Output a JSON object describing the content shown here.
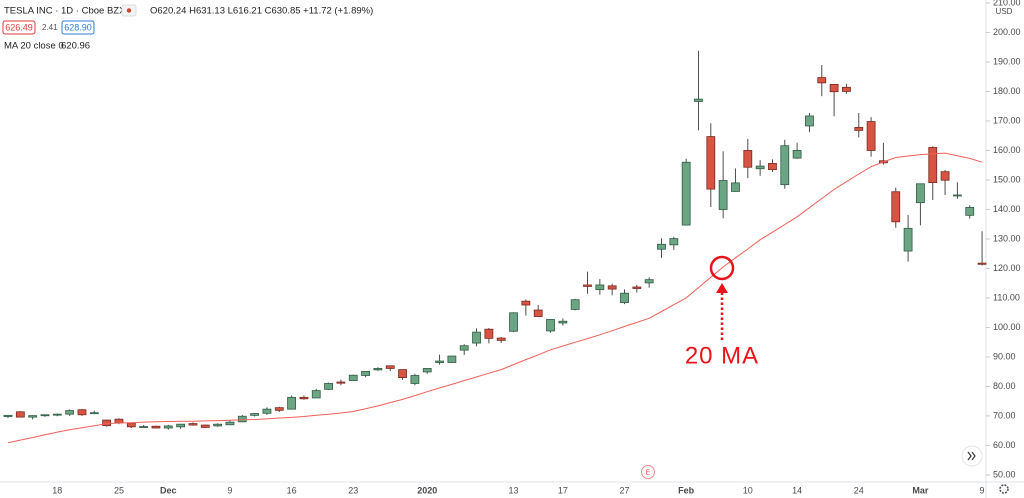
{
  "header": {
    "symbol": "TESLA INC · 1D · Cboe BZX",
    "ohlc": "O620.24 H631.13 L616.21 C630.85 +11.72 (+1.89%)",
    "bid": "626.49",
    "spread": "2.41",
    "ask": "628.90"
  },
  "chart_data": {
    "type": "candlestick",
    "categories": [
      null,
      null,
      null,
      null,
      "18",
      null,
      null,
      null,
      null,
      "25",
      null,
      null,
      null,
      "Dec",
      null,
      null,
      null,
      null,
      "9",
      null,
      null,
      null,
      null,
      "16",
      null,
      null,
      null,
      null,
      "23",
      null,
      null,
      null,
      null,
      null,
      "2020",
      null,
      null,
      null,
      null,
      null,
      null,
      "13",
      null,
      null,
      null,
      "17",
      null,
      null,
      null,
      null,
      "27",
      null,
      null,
      null,
      null,
      "Feb",
      null,
      null,
      null,
      null,
      "10",
      null,
      null,
      null,
      "14",
      null,
      null,
      null,
      null,
      "24",
      null,
      null,
      null,
      null,
      "Mar",
      null,
      null,
      null,
      null,
      "9"
    ],
    "open": [
      69.8,
      71.4,
      69.6,
      70.1,
      70.3,
      70.6,
      72.1,
      71.0,
      68.6,
      68.9,
      67.6,
      66.3,
      66.5,
      65.9,
      66.3,
      67.4,
      66.9,
      66.6,
      67.0,
      68.0,
      70.2,
      70.9,
      72.8,
      72.3,
      76.3,
      76.1,
      79.0,
      81.5,
      82.0,
      83.7,
      85.6,
      87.0,
      85.7,
      81.0,
      84.9,
      88.1,
      88.1,
      92.3,
      94.7,
      99.4,
      96.4,
      98.7,
      108.9,
      105.9,
      98.8,
      101.5,
      106.1,
      114.4,
      112.8,
      114.1,
      108.4,
      113.7,
      115.1,
      126.5,
      128.0,
      134.7,
      176.6,
      164.7,
      139.98,
      146.1,
      160.0,
      153.8,
      155.6,
      148.4,
      157.4,
      168.3,
      184.7,
      182.4,
      181.4,
      167.8,
      169.8,
      156.5,
      146.0,
      125.9,
      142.3,
      161.0,
      152.8,
      144.8,
      138.0,
      121.8
    ],
    "high": [
      70.3,
      71.6,
      70.2,
      70.5,
      70.8,
      72.2,
      72.3,
      71.8,
      68.8,
      69.2,
      67.7,
      66.9,
      66.7,
      67.0,
      67.3,
      67.8,
      67.1,
      67.5,
      68.4,
      70.3,
      71.0,
      72.9,
      73.1,
      76.9,
      76.9,
      79.2,
      81.3,
      82.3,
      84.0,
      85.2,
      86.5,
      87.1,
      85.8,
      84.3,
      86.1,
      90.8,
      90.3,
      94.3,
      99.7,
      99.8,
      96.8,
      105.1,
      109.5,
      107.6,
      102.7,
      103.1,
      109.7,
      118.9,
      116.4,
      114.8,
      112.9,
      114.4,
      117.0,
      130.2,
      130.8,
      157.2,
      193.8,
      169.2,
      159.7,
      153.9,
      163.9,
      156.7,
      157.0,
      163.6,
      162.6,
      172.7,
      188.96,
      182.4,
      182.6,
      172.7,
      171.3,
      162.6,
      147.4,
      138.1,
      148.7,
      161.4,
      153.4,
      149.2,
      141.4,
      132.6
    ],
    "low": [
      69.3,
      69.5,
      68.8,
      69.7,
      69.9,
      70.0,
      70.0,
      70.6,
      66.4,
      67.2,
      65.9,
      65.9,
      65.8,
      65.3,
      65.6,
      66.7,
      65.9,
      66.3,
      66.9,
      67.9,
      69.8,
      70.3,
      71.3,
      72.2,
      75.5,
      76.0,
      78.8,
      80.4,
      81.9,
      83.1,
      85.3,
      85.2,
      82.2,
      80.4,
      84.3,
      87.4,
      88.0,
      90.7,
      93.6,
      94.6,
      94.7,
      98.4,
      104.0,
      103.6,
      98.2,
      100.6,
      105.8,
      111.4,
      111.1,
      110.9,
      107.9,
      111.8,
      113.5,
      123.6,
      126.3,
      134.6,
      166.8,
      140.8,
      137.0,
      146.0,
      150.6,
      151.4,
      152.7,
      147.0,
      157.1,
      166.2,
      178.4,
      171.6,
      179.2,
      164.4,
      157.9,
      155.2,
      133.8,
      122.3,
      134.6,
      143.2,
      144.9,
      143.6,
      136.9,
      121.0
    ],
    "close": [
      70.2,
      69.6,
      70.1,
      70.4,
      70.6,
      71.8,
      70.4,
      71.1,
      66.7,
      67.6,
      66.3,
      66.4,
      65.9,
      66.6,
      67.2,
      66.9,
      66.1,
      67.2,
      67.9,
      69.9,
      70.8,
      72.3,
      71.9,
      76.3,
      75.8,
      78.6,
      81.0,
      81.1,
      83.8,
      85.1,
      86.1,
      86.1,
      83.0,
      83.7,
      86.1,
      88.6,
      90.3,
      93.8,
      98.4,
      96.3,
      95.6,
      104.97,
      107.6,
      103.7,
      102.7,
      102.1,
      109.4,
      113.9,
      114.4,
      113.0,
      111.6,
      113.2,
      116.2,
      128.2,
      130.1,
      156.0,
      177.4,
      146.9,
      149.8,
      149.0,
      154.3,
      154.7,
      153.5,
      161.6,
      160.0,
      171.7,
      182.9,
      179.9,
      180.0,
      166.8,
      159.98,
      155.8,
      135.8,
      133.6,
      148.7,
      149.1,
      149.9,
      144.9,
      140.7,
      121.4
    ],
    "up_color": "#6ba583",
    "down_color": "#d75442",
    "ma": {
      "name": "MA 20 close 0",
      "last_value": 620.96,
      "color": "#f0605a",
      "values": [
        60.9,
        61.8,
        62.7,
        63.6,
        64.5,
        65.3,
        66.0,
        66.7,
        67.4,
        67.6,
        67.7,
        67.9,
        68.0,
        68.1,
        68.2,
        68.2,
        68.3,
        68.4,
        68.5,
        68.7,
        68.8,
        69.0,
        69.3,
        69.5,
        69.8,
        70.2,
        70.6,
        71.0,
        71.5,
        72.4,
        73.4,
        74.5,
        75.6,
        76.9,
        78.2,
        79.5,
        80.7,
        82.0,
        83.2,
        84.5,
        85.7,
        87.4,
        89.1,
        90.7,
        92.4,
        93.7,
        95.0,
        96.2,
        97.5,
        98.9,
        100.3,
        101.7,
        103.1,
        105.4,
        107.7,
        110.0,
        113.5,
        117.0,
        120.5,
        123.6,
        126.6,
        129.7,
        132.3,
        134.9,
        137.5,
        140.6,
        143.7,
        146.8,
        149.4,
        152.0,
        154.5,
        156.1,
        157.6,
        158.1,
        158.6,
        158.9,
        159.1,
        158.2,
        157.3,
        156.0
      ]
    },
    "ylim": [
      47.6,
      211.0
    ],
    "yticks": [
      {
        "value": 50,
        "label": "50.00"
      },
      {
        "value": 60,
        "label": "60.00"
      },
      {
        "value": 70,
        "label": "70.00"
      },
      {
        "value": 80,
        "label": "80.00"
      },
      {
        "value": 90,
        "label": "90.00"
      },
      {
        "value": 100,
        "label": "100.00"
      },
      {
        "value": 110,
        "label": "110.00"
      },
      {
        "value": 120,
        "label": "120.00"
      },
      {
        "value": 130,
        "label": "130.00"
      },
      {
        "value": 140,
        "label": "140.00"
      },
      {
        "value": 150,
        "label": "150.00"
      },
      {
        "value": 160,
        "label": "160.00"
      },
      {
        "value": 170,
        "label": "170.00"
      },
      {
        "value": 180,
        "label": "180.00"
      },
      {
        "value": 190,
        "label": "190.00"
      },
      {
        "value": 200,
        "label": "200.00"
      },
      {
        "value": 210,
        "label": "210.00"
      }
    ],
    "currency": "USD",
    "grid": false,
    "annotation": "20 MA",
    "earnings_marker": "E"
  }
}
